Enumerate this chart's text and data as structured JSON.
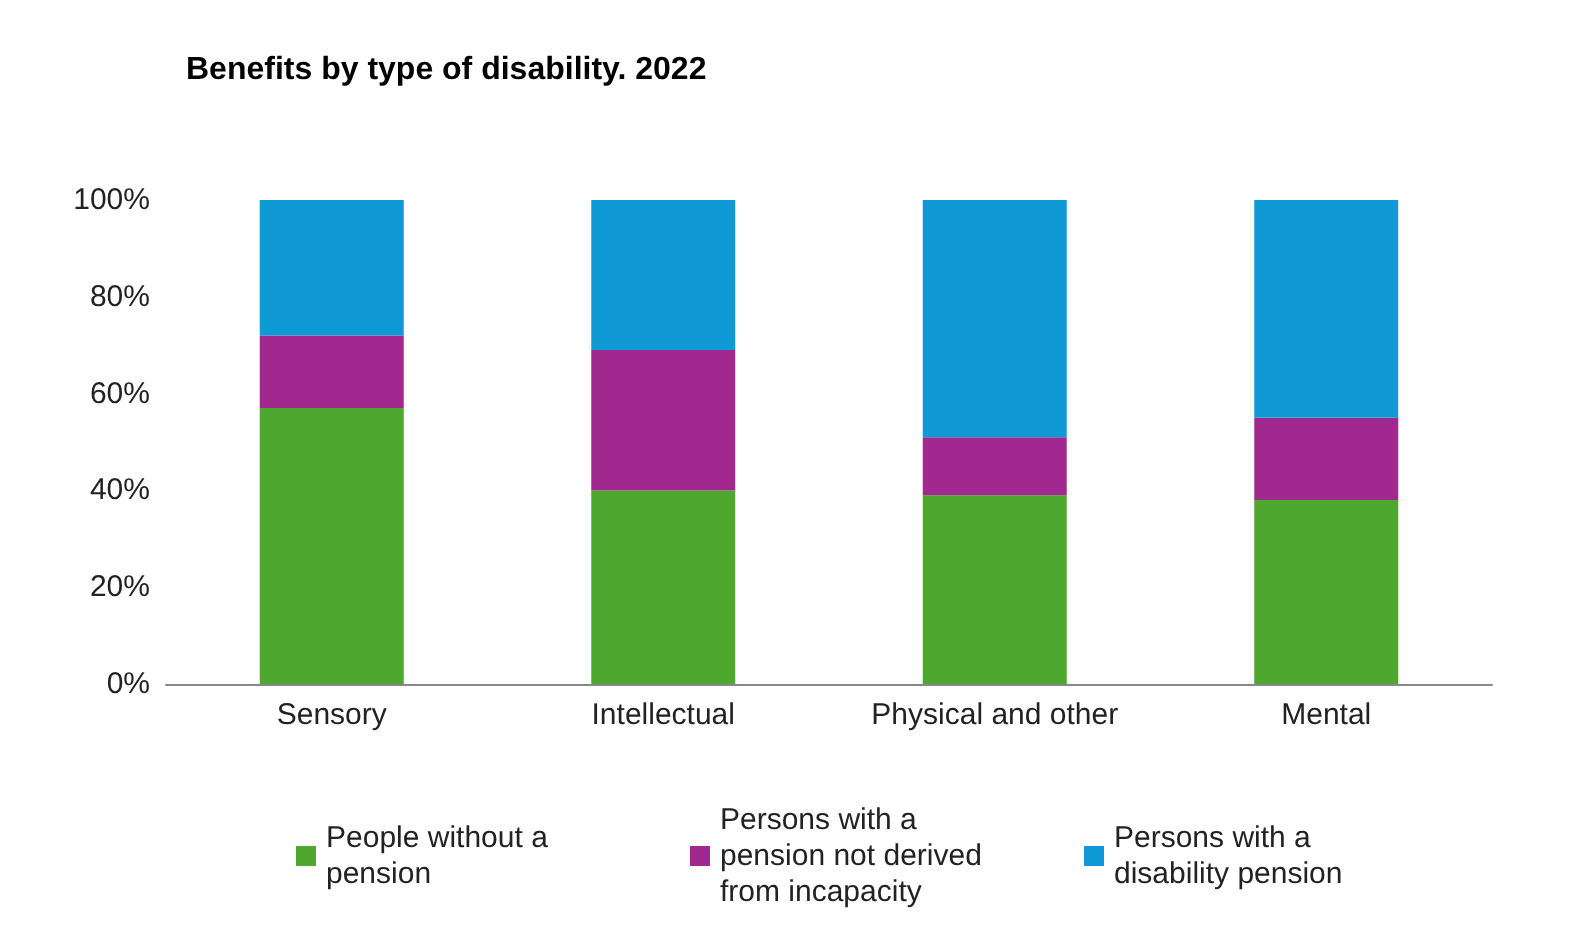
{
  "chart_data": {
    "type": "bar",
    "title": "Benefits by type of disability. 2022",
    "stacked": true,
    "categories": [
      "Sensory",
      "Intellectual",
      "Physical and other",
      "Mental"
    ],
    "series": [
      {
        "name": "People without a pension",
        "color": "#4ea72e",
        "values": [
          57,
          40,
          39,
          38
        ]
      },
      {
        "name": "Persons with a pension not derived from incapacity",
        "color": "#a0288e",
        "values": [
          15,
          29,
          12,
          17
        ]
      },
      {
        "name": "Persons with a disability pension",
        "color": "#0f9ad5",
        "values": [
          28,
          31,
          49,
          45
        ]
      }
    ],
    "ylim": [
      0,
      100
    ],
    "yticks": [
      {
        "value": 0,
        "label": "0%"
      },
      {
        "value": 20,
        "label": "20%"
      },
      {
        "value": 40,
        "label": "40%"
      },
      {
        "value": 60,
        "label": "60%"
      },
      {
        "value": 80,
        "label": "80%"
      },
      {
        "value": 100,
        "label": "100%"
      }
    ],
    "grid": false,
    "legend": "bottom"
  }
}
